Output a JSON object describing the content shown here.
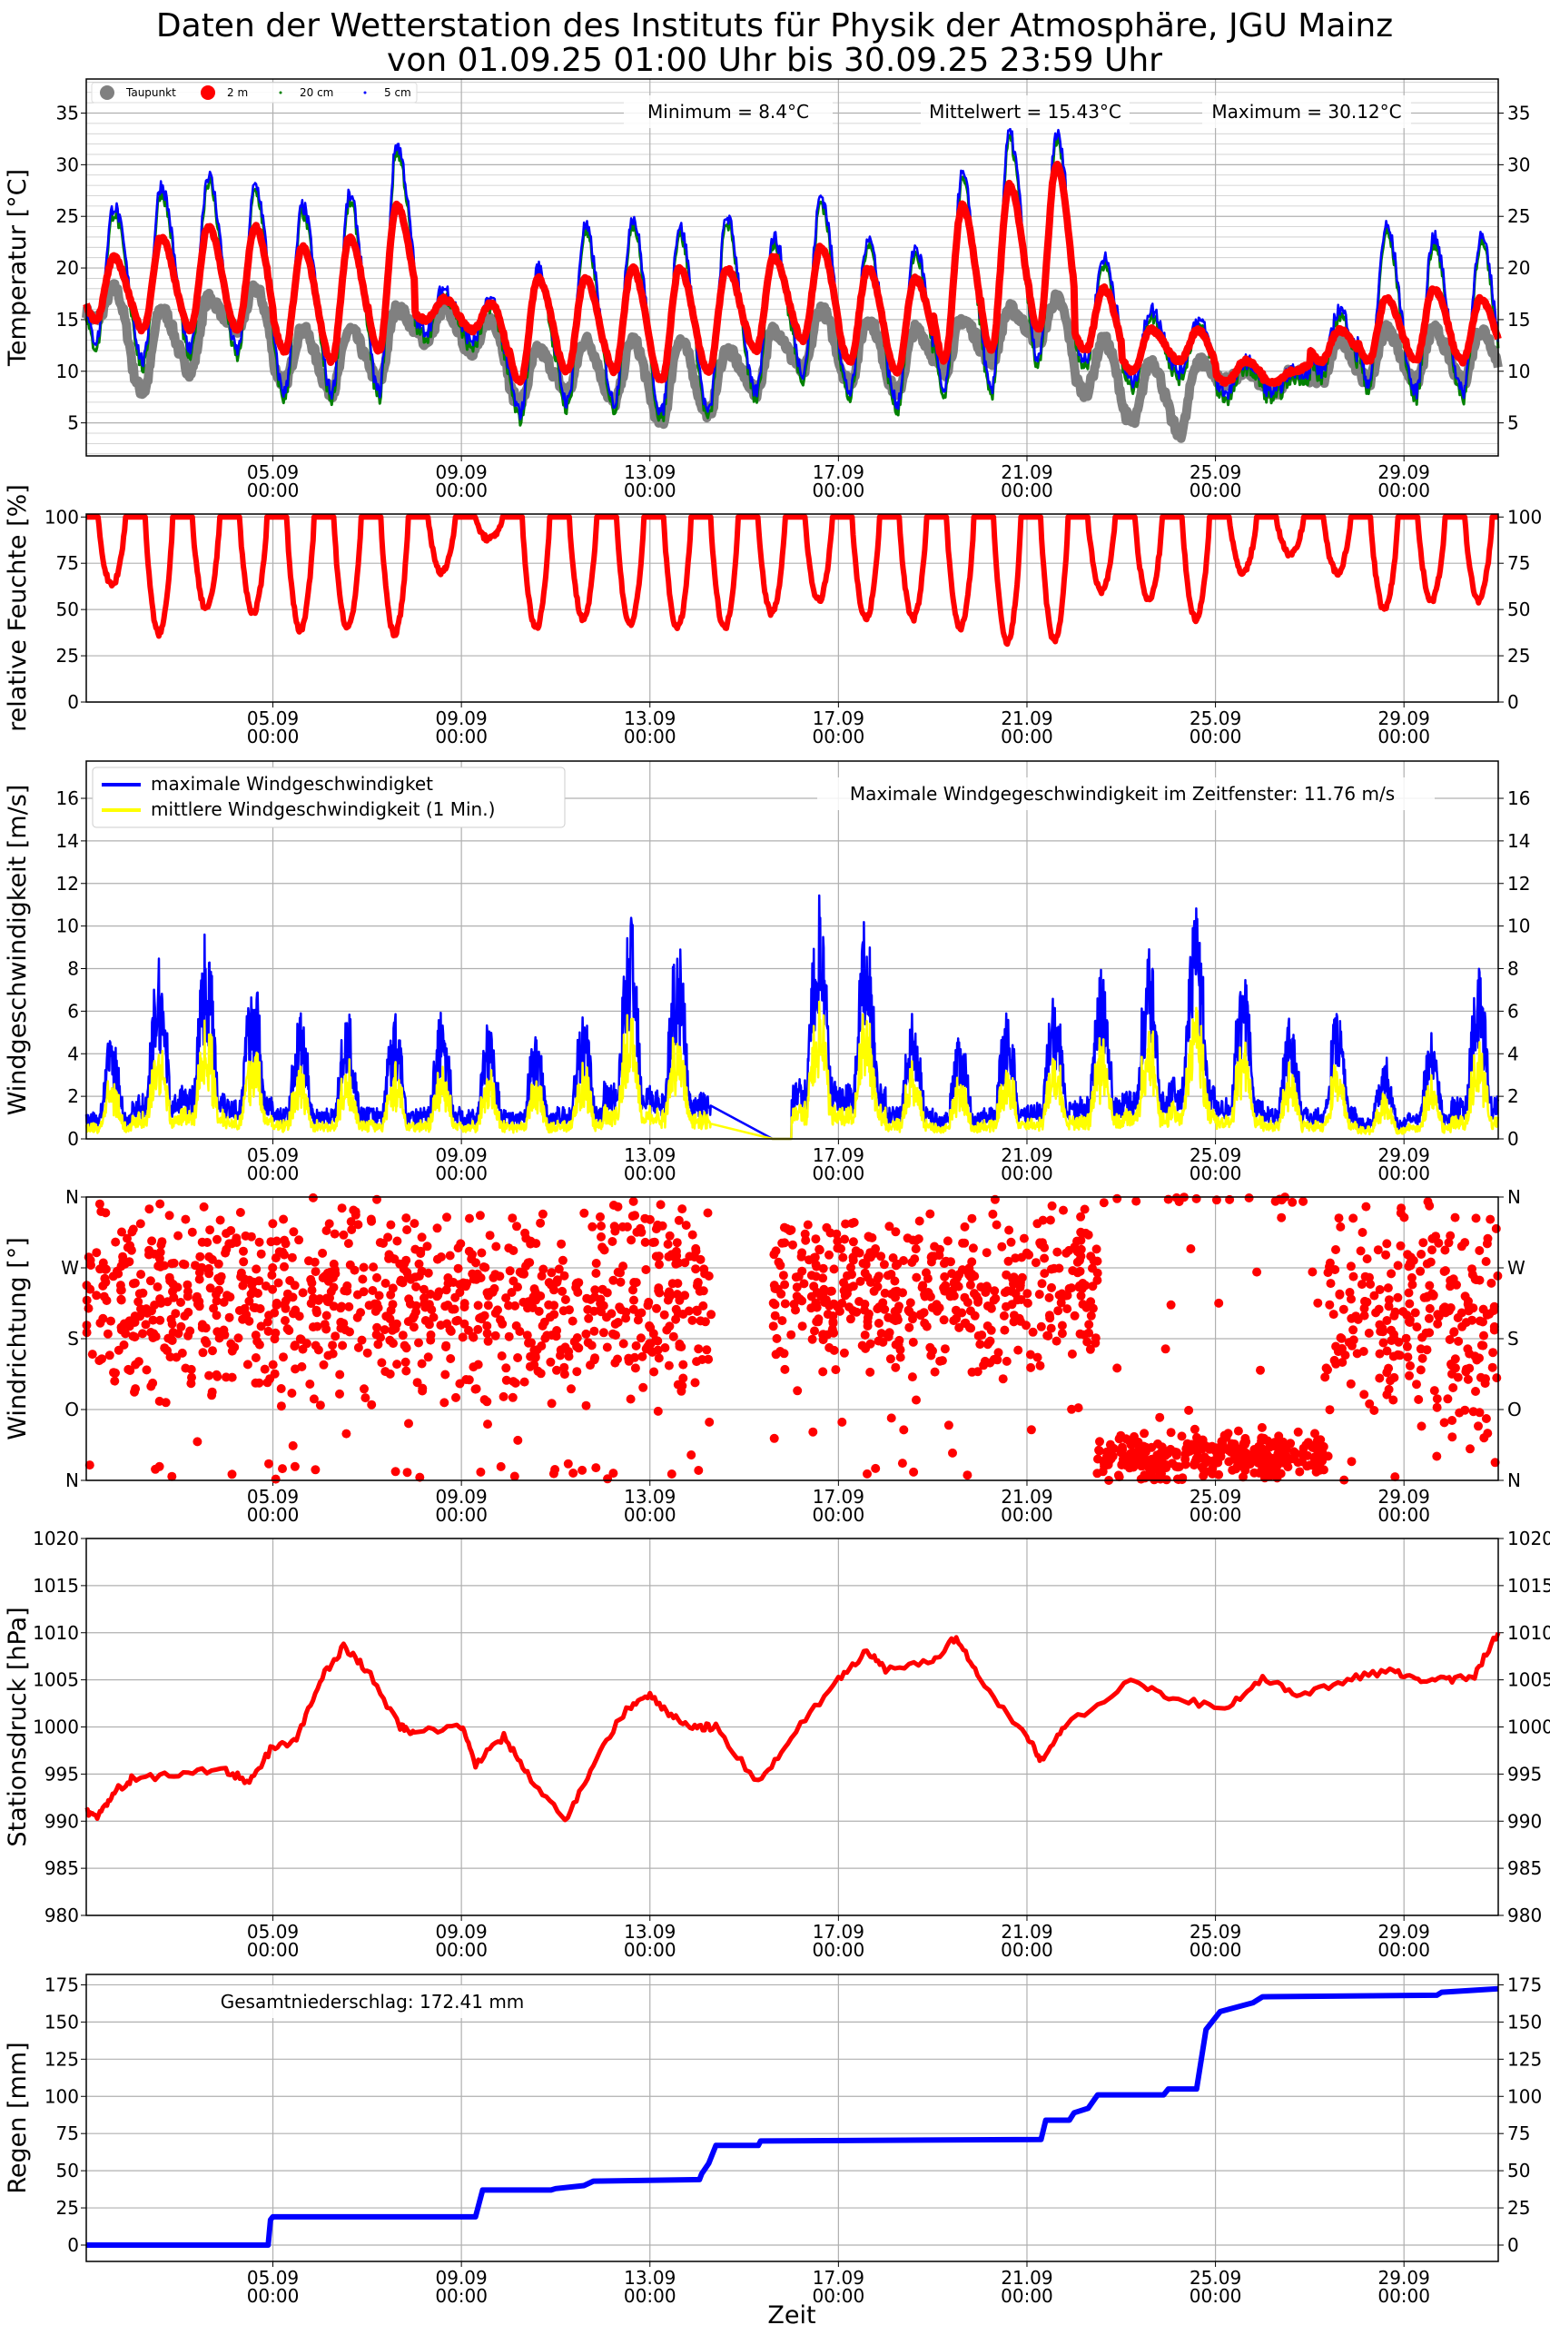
{
  "title_line1": "Daten der Wetterstation des Instituts für Physik der Atmosphäre, JGU Mainz",
  "title_line2": "von 01.09.25 01:00 Uhr bis 30.09.25 23:59 Uhr",
  "xlabel": "Zeit",
  "x_ticks": [
    {
      "day": 5,
      "l1": "05.09",
      "l2": "00:00"
    },
    {
      "day": 9,
      "l1": "09.09",
      "l2": "00:00"
    },
    {
      "day": 13,
      "l1": "13.09",
      "l2": "00:00"
    },
    {
      "day": 17,
      "l1": "17.09",
      "l2": "00:00"
    },
    {
      "day": 21,
      "l1": "21.09",
      "l2": "00:00"
    },
    {
      "day": 25,
      "l1": "25.09",
      "l2": "00:00"
    },
    {
      "day": 29,
      "l1": "29.09",
      "l2": "00:00"
    }
  ],
  "x_unit": "calendar day of September (fractional)",
  "xlim": [
    1.04,
    31.0
  ],
  "chart_data": [
    {
      "type": "line",
      "ylabel": "Temperatur [°C]",
      "ylim": [
        1.8,
        38.3
      ],
      "yticks": [
        5,
        10,
        15,
        20,
        25,
        30,
        35
      ],
      "annotations": [
        "Minimum = 8.4°C",
        "Mittelwert = 15.43°C",
        "Maximum = 30.12°C"
      ],
      "legend": [
        "Taupunkt",
        "2 m",
        "20 cm",
        "5 cm"
      ],
      "legend_placement": "top-left",
      "colors": {
        "Taupunkt": "#808080",
        "2 m": "#ff0000",
        "20 cm": "#008000",
        "5 cm": "#0000ff"
      },
      "daily": {
        "t2m_max": [
          21,
          23,
          24,
          24,
          22,
          23,
          26,
          17,
          16.5,
          19,
          19,
          20,
          20,
          20,
          21,
          22,
          20,
          19,
          26,
          28,
          30,
          18,
          14,
          14,
          11,
          10,
          14,
          17,
          18,
          17
        ],
        "t2m_min": [
          15,
          14,
          14,
          14,
          12,
          11,
          12,
          15,
          14,
          9,
          10,
          10,
          9,
          10,
          12,
          13,
          11,
          10,
          11,
          12,
          14,
          12,
          10,
          11,
          9,
          9,
          11,
          11,
          11,
          11
        ],
        "t5cm_max": [
          26,
          28,
          29,
          28,
          26,
          27,
          32,
          18,
          17,
          20,
          24,
          25,
          24,
          25,
          23,
          27,
          23,
          22,
          29,
          33,
          33,
          21,
          16,
          15,
          11,
          10,
          16,
          24,
          23,
          23
        ],
        "t5cm_min": [
          13,
          11,
          12,
          12,
          8,
          8,
          8,
          14,
          13,
          6,
          7,
          7,
          6,
          6,
          8,
          10,
          8,
          7,
          8,
          8,
          11,
          11,
          9,
          10,
          8,
          8,
          10,
          9,
          8,
          8
        ],
        "dewpoint_max": [
          18,
          16,
          17,
          18,
          14,
          14,
          16,
          16,
          15,
          12,
          13,
          13,
          13,
          12,
          14,
          16,
          15,
          14,
          15,
          16,
          17,
          13,
          11,
          11,
          10,
          10,
          13,
          14,
          14,
          14
        ],
        "dewpoint_min": [
          15,
          8,
          10,
          14,
          9,
          8,
          9,
          13,
          12,
          7,
          8,
          7,
          5,
          6,
          8,
          10,
          9,
          8,
          10,
          11,
          13,
          8,
          5,
          4,
          9,
          8,
          9,
          9,
          9,
          9
        ]
      }
    },
    {
      "type": "line",
      "ylabel": "relative Feuchte [%]",
      "ylim": [
        0,
        101.6
      ],
      "yticks": [
        0,
        25,
        50,
        75,
        100
      ],
      "color": "#ff0000",
      "daily_min": [
        63,
        37,
        50,
        48,
        39,
        40,
        37,
        70,
        88,
        40,
        45,
        42,
        40,
        40,
        48,
        55,
        45,
        45,
        40,
        32,
        33,
        60,
        55,
        45,
        70,
        80,
        70,
        50,
        55,
        55
      ]
    },
    {
      "type": "line",
      "ylabel": "Windgeschwindigkeit [m/s]",
      "ylim": [
        0,
        17.75
      ],
      "yticks": [
        0,
        2,
        4,
        6,
        8,
        10,
        12,
        14,
        16
      ],
      "legend": [
        "maximale Windgeschwindigket",
        "mittlere Windgeschwindigkeit (1 Min.)"
      ],
      "legend_placement": "top-left",
      "colors": {
        "max": "#0000ff",
        "mean": "#ffff00"
      },
      "annotation": "Maximale Windgegeschwindigkeit im Zeitfenster: 11.76 m/s",
      "daily_max": [
        5,
        8.5,
        10,
        8,
        6,
        6,
        6,
        6,
        5.5,
        5,
        6,
        10.8,
        9.5,
        8.7,
        0,
        11.5,
        10.5,
        6,
        5,
        6,
        7,
        8,
        9,
        11.7,
        8,
        6,
        6,
        4,
        5,
        8
      ],
      "data_gap": [
        14.3,
        15.6
      ]
    },
    {
      "type": "scatter",
      "ylabel": "Windrichtung [°]",
      "ylim": [
        0,
        360
      ],
      "yticks": [
        {
          "v": 0,
          "l": "N"
        },
        {
          "v": 90,
          "l": "O"
        },
        {
          "v": 180,
          "l": "S"
        },
        {
          "v": 270,
          "l": "W"
        },
        {
          "v": 360,
          "l": "N"
        }
      ],
      "color": "#ff0000",
      "data_gap": [
        14.3,
        15.6
      ],
      "regimes": [
        {
          "from": 1.04,
          "to": 14.3,
          "center_deg": 230,
          "spread_deg": 110
        },
        {
          "from": 15.6,
          "to": 22.5,
          "center_deg": 240,
          "spread_deg": 90
        },
        {
          "from": 22.5,
          "to": 27.3,
          "center_deg": 30,
          "spread_deg": 30
        },
        {
          "from": 27.3,
          "to": 31.0,
          "center_deg": 220,
          "spread_deg": 120
        }
      ]
    },
    {
      "type": "line",
      "ylabel": "Stationsdruck [hPa]",
      "ylim": [
        980,
        1020
      ],
      "yticks": [
        980,
        985,
        990,
        995,
        1000,
        1005,
        1010,
        1015,
        1020
      ],
      "color": "#ff0000",
      "x": [
        1.04,
        1.3,
        1.6,
        2,
        3,
        4,
        4.5,
        5,
        5.5,
        6,
        6.5,
        7,
        7.7,
        8,
        9,
        9.3,
        9.9,
        10.4,
        11.2,
        11.8,
        12.5,
        13,
        13.5,
        14,
        14.4,
        15.3,
        16,
        17,
        17.6,
        18,
        19,
        19.5,
        20,
        21,
        21.3,
        21.8,
        23.2,
        24.1,
        25.2,
        26,
        26.8,
        27.8,
        28.7,
        29.3,
        29.9,
        30.5,
        31
      ],
      "values": [
        991,
        990.5,
        993,
        994.5,
        995,
        995.5,
        994,
        998,
        998.5,
        1005,
        1008.5,
        1006,
        1000,
        999.5,
        1000,
        996,
        999,
        995,
        990,
        996,
        1002,
        1003.5,
        1001,
        1000,
        1000,
        994,
        999,
        1005,
        1008,
        1006,
        1007,
        1009.5,
        1005,
        999,
        996.5,
        1000,
        1005,
        1003,
        1002,
        1005,
        1003.5,
        1005,
        1006,
        1005,
        1005,
        1005.5,
        1010
      ]
    },
    {
      "type": "line",
      "ylabel": "Regen [mm]",
      "ylim": [
        -11,
        182
      ],
      "yticks": [
        0,
        25,
        50,
        75,
        100,
        125,
        150,
        175
      ],
      "color": "#0000ff",
      "annotation": "Gesamtniederschlag: 172.41 mm",
      "x": [
        1.04,
        4.9,
        4.95,
        5.0,
        9.3,
        9.45,
        10.9,
        11.0,
        11.6,
        11.8,
        14.05,
        14.1,
        14.25,
        14.4,
        15.3,
        15.35,
        21.3,
        21.4,
        21.9,
        22.0,
        22.3,
        22.5,
        23.9,
        24.0,
        24.6,
        24.8,
        25.1,
        25.8,
        26.0,
        29.7,
        29.8,
        31.0
      ],
      "values": [
        0,
        0,
        17,
        19,
        19,
        37,
        37,
        38,
        40,
        43,
        44,
        48,
        55,
        67,
        67,
        70,
        71,
        84,
        84,
        89,
        92,
        101,
        101,
        105,
        105,
        145,
        157,
        163,
        167,
        168,
        170,
        172.41
      ]
    }
  ]
}
